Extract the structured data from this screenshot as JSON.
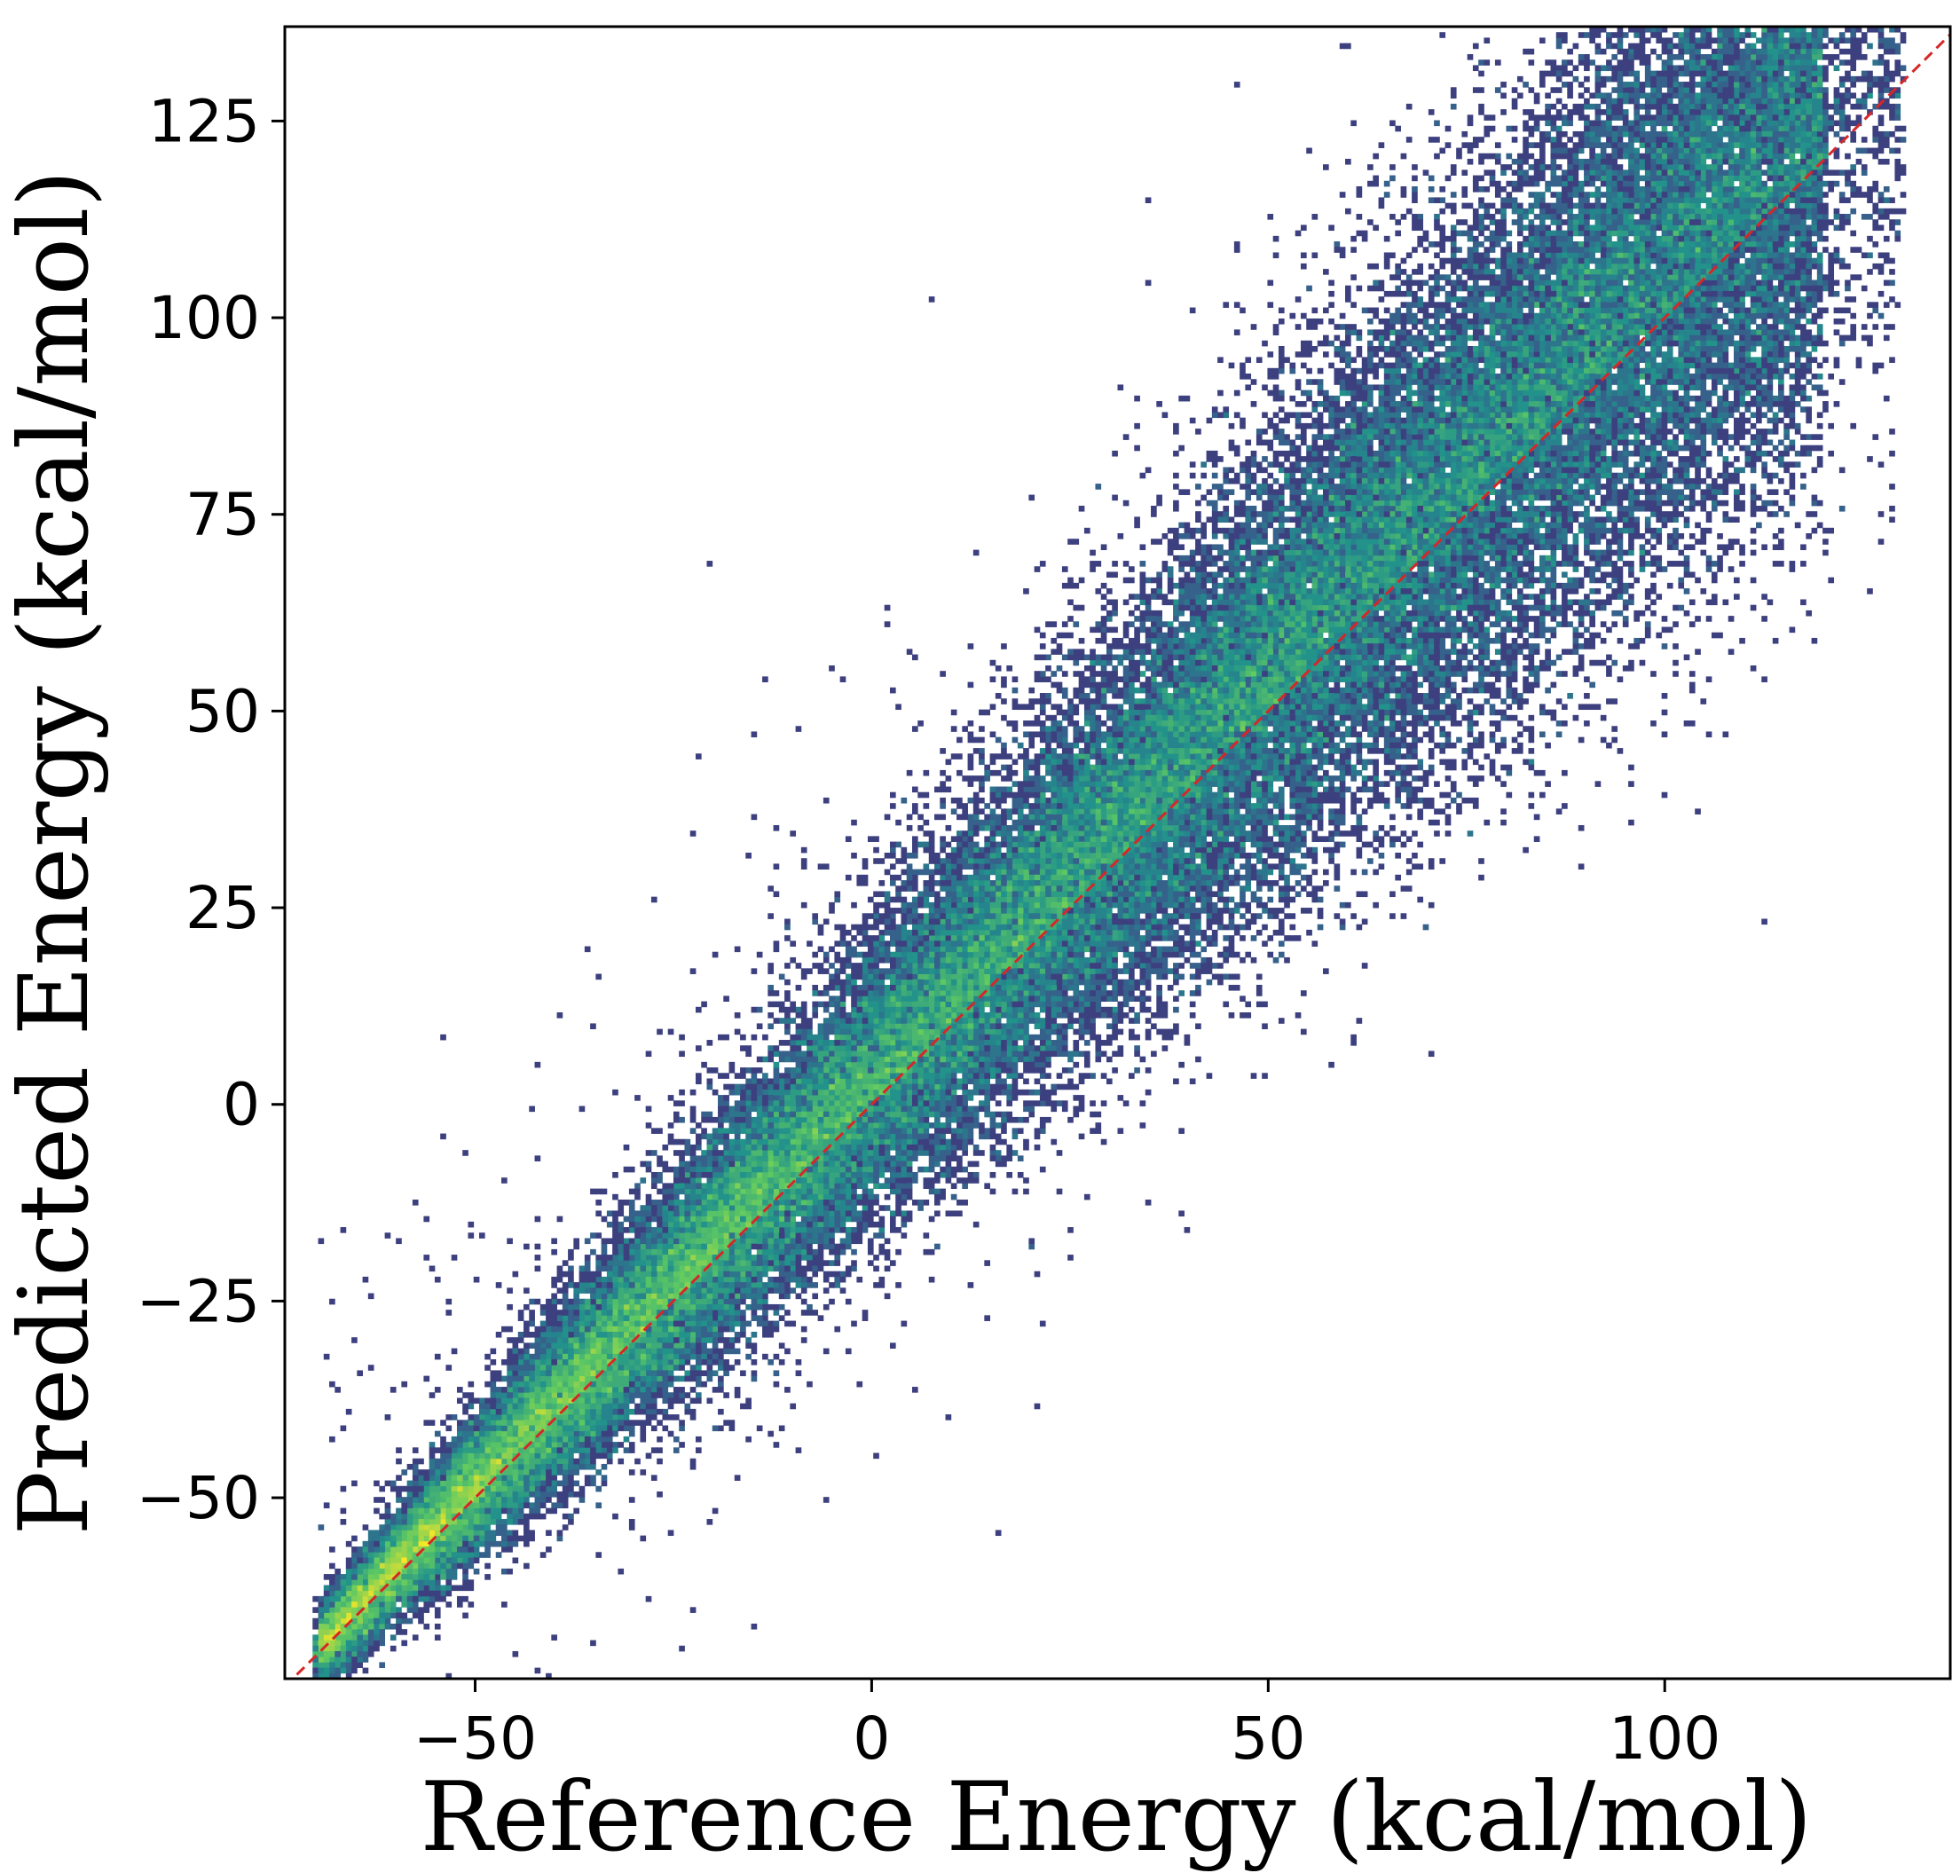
{
  "chart_data": {
    "type": "heatmap",
    "subtype": "2d-histogram",
    "colormap": "viridis",
    "colormap_stops": [
      "#440154",
      "#3b528b",
      "#21918c",
      "#5ec962",
      "#fde725"
    ],
    "title": "",
    "xlabel": "Reference Energy (kcal/mol)",
    "ylabel": "Predicted Energy (kcal/mol)",
    "xlim": [
      -74,
      136
    ],
    "ylim": [
      -73,
      137
    ],
    "xticks": [
      -50,
      0,
      50,
      100
    ],
    "xtick_labels": [
      "−50",
      "0",
      "50",
      "100"
    ],
    "yticks": [
      -50,
      -25,
      0,
      25,
      50,
      75,
      100,
      125
    ],
    "ytick_labels": [
      "−50",
      "−25",
      "0",
      "25",
      "50",
      "75",
      "100",
      "125"
    ],
    "grid": false,
    "reference_line": {
      "style": "dashed",
      "color": "#d62728",
      "x": [
        -74,
        136
      ],
      "y": [
        -74,
        136
      ]
    },
    "density_description_points": {
      "diagonal_core_x": [
        -70,
        -50,
        -25,
        0,
        25,
        50,
        75,
        100,
        125
      ],
      "diagonal_core_y": [
        -70,
        -50,
        -25,
        0,
        25,
        50,
        75,
        100,
        125
      ]
    }
  }
}
